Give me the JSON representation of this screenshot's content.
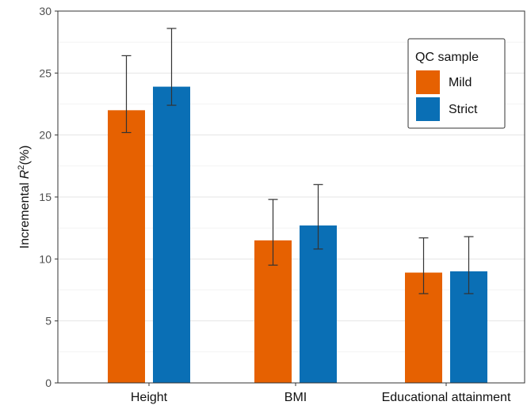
{
  "chart_data": {
    "type": "bar",
    "categories": [
      "Height",
      "BMI",
      "Educational attainment"
    ],
    "series": [
      {
        "name": "Mild",
        "color": "#E66101",
        "values": [
          22.0,
          11.5,
          8.9
        ],
        "error_low": [
          20.2,
          9.5,
          7.2
        ],
        "error_high": [
          26.4,
          14.8,
          11.7
        ]
      },
      {
        "name": "Strict",
        "color": "#0A6FB5",
        "values": [
          23.9,
          12.7,
          9.0
        ],
        "error_low": [
          22.4,
          10.8,
          7.2
        ],
        "error_high": [
          28.6,
          16.0,
          11.8
        ]
      }
    ],
    "ylabel_prefix": "Incremental ",
    "ylabel_math": "R",
    "ylabel_sup": "2",
    "ylabel_suffix": "(%)",
    "ylim": [
      0,
      30
    ],
    "yticks": [
      0,
      5,
      10,
      15,
      20,
      25,
      30
    ],
    "grid": true,
    "legend": {
      "title": "QC sample",
      "position": "top-right"
    }
  }
}
